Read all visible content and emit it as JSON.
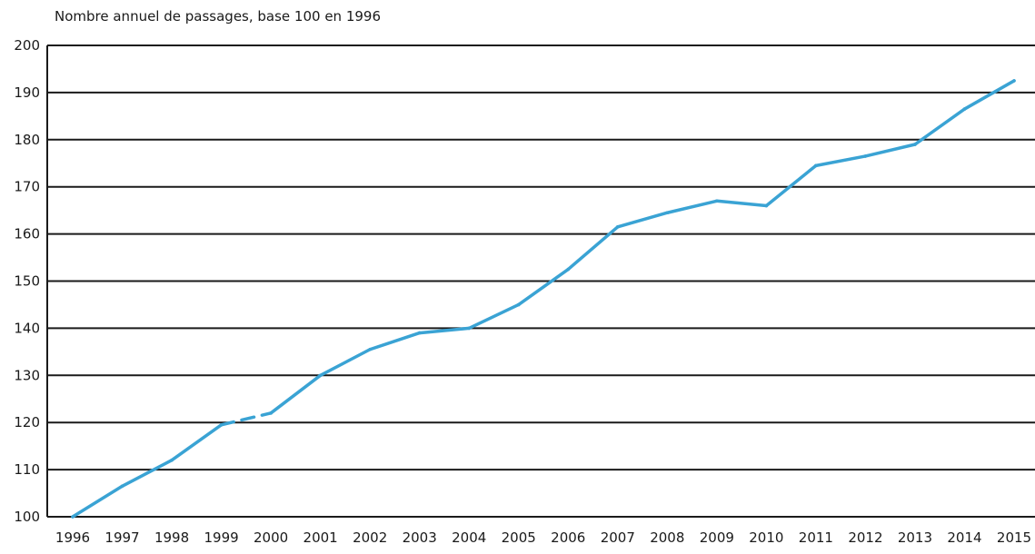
{
  "chart_data": {
    "type": "line",
    "title": "Nombre annuel de passages, base 100 en 1996",
    "xlabel": "",
    "ylabel": "",
    "x": [
      "1996",
      "1997",
      "1998",
      "1999",
      "2000",
      "2001",
      "2002",
      "2003",
      "2004",
      "2005",
      "2006",
      "2007",
      "2008",
      "2009",
      "2010",
      "2011",
      "2012",
      "2013",
      "2014",
      "2015"
    ],
    "series": [
      {
        "values": [
          100,
          106.5,
          112,
          119.5,
          122,
          130,
          135.5,
          139,
          140,
          145,
          152.5,
          161.5,
          164.5,
          167,
          166,
          174.5,
          176.5,
          179,
          186.5,
          192.5
        ],
        "color": "#3aa3d4",
        "dashed_segment": [
          "1999",
          "2000"
        ]
      }
    ],
    "ylim": [
      100,
      200
    ],
    "yticks": [
      100,
      110,
      120,
      130,
      140,
      150,
      160,
      170,
      180,
      190,
      200
    ],
    "grid": true,
    "legend": "none"
  }
}
